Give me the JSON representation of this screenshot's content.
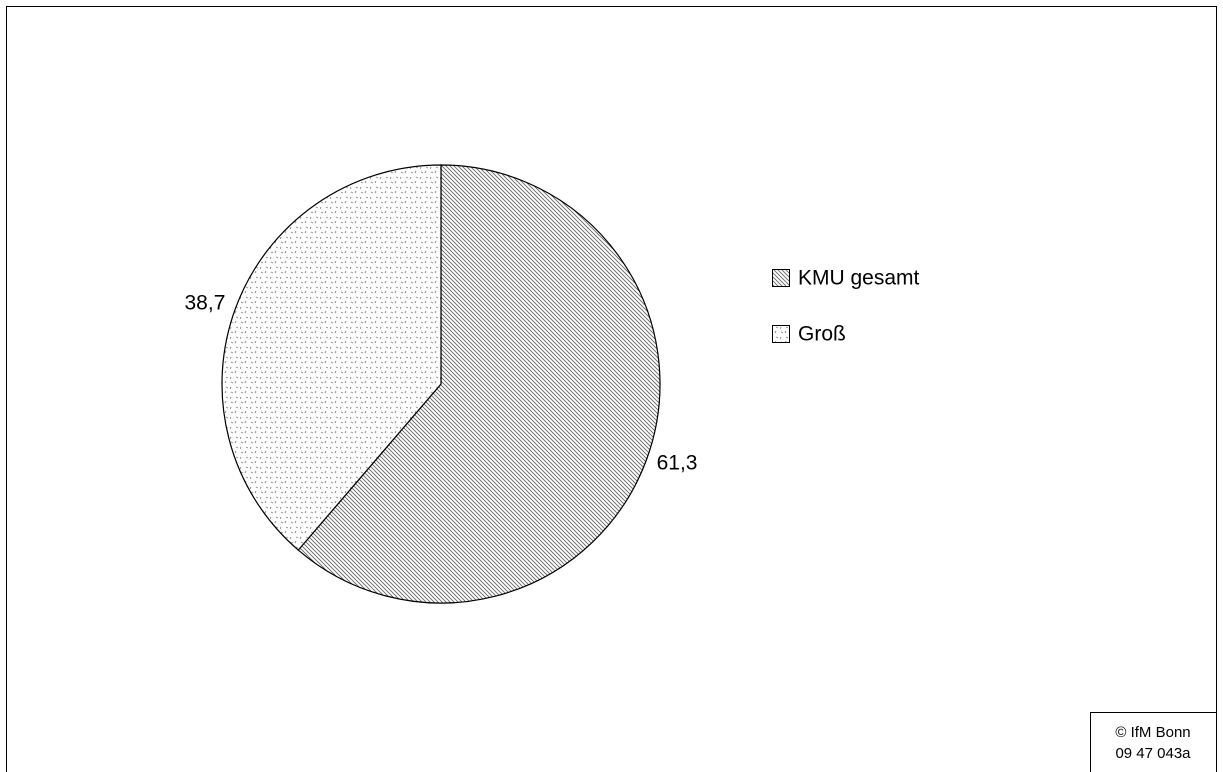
{
  "chart_data": {
    "type": "pie",
    "categories": [
      "KMU gesamt",
      "Groß"
    ],
    "values": [
      61.3,
      38.7
    ],
    "value_labels": [
      "61,3",
      "38,7"
    ],
    "source": [
      "© IfM Bonn",
      "09 47 043a"
    ]
  }
}
